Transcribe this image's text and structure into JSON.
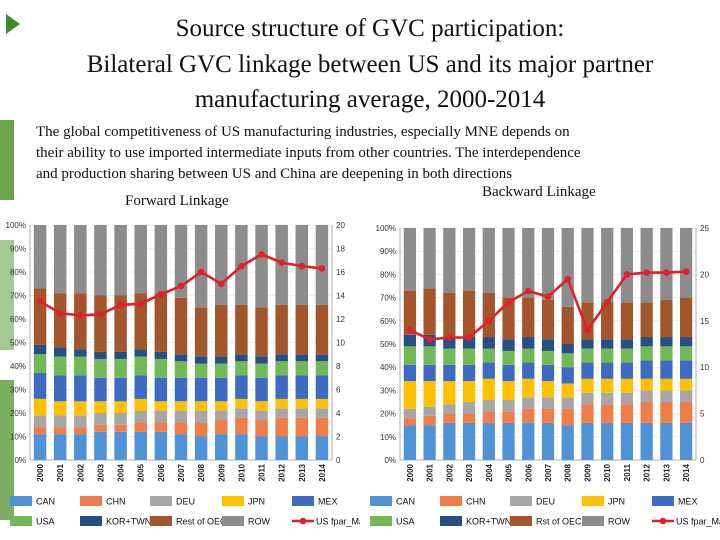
{
  "slide": {
    "title_lines": [
      "Source structure of GVC participation:",
      "Bilateral GVC linkage between US and its major partner",
      "manufacturing average, 2000-2014"
    ],
    "body_lines": [
      "The global competitiveness of US manufacturing industries, especially MNE depends on",
      "their ability to use imported intermediate inputs from other countries. The interdependence",
      "and production sharing between US and China are deepening in both directions"
    ],
    "forward_label": "Forward Linkage",
    "backward_label": "Backward Linkage"
  },
  "chart_data": [
    {
      "type": "bar",
      "title": "Forward Linkage",
      "stacked": true,
      "categories": [
        "2000",
        "2001",
        "2002",
        "2003",
        "2004",
        "2005",
        "2006",
        "2007",
        "2008",
        "2009",
        "2010",
        "2011",
        "2012",
        "2013",
        "2014"
      ],
      "ylim": [
        0,
        100
      ],
      "yticks": [
        "0%",
        "10%",
        "20%",
        "30%",
        "40%",
        "50%",
        "60%",
        "70%",
        "80%",
        "90%",
        "100%"
      ],
      "y2lim": [
        0,
        20
      ],
      "y2ticks": [
        "0",
        "2",
        "4",
        "6",
        "8",
        "10",
        "12",
        "14",
        "16",
        "18",
        "20"
      ],
      "series": [
        {
          "name": "CAN",
          "color": "#4f93d6",
          "values": [
            11,
            11,
            11,
            12,
            12,
            12,
            12,
            11,
            10,
            11,
            11,
            10,
            10,
            10,
            10
          ]
        },
        {
          "name": "CHN",
          "color": "#ee7d4a",
          "values": [
            3,
            3,
            3,
            3,
            3,
            4,
            4,
            5,
            6,
            6,
            7,
            7,
            8,
            8,
            8
          ]
        },
        {
          "name": "DEU",
          "color": "#a6a6a6",
          "values": [
            5,
            5,
            5,
            5,
            5,
            5,
            5,
            5,
            5,
            4,
            4,
            4,
            4,
            4,
            4
          ]
        },
        {
          "name": "JPN",
          "color": "#ffc000",
          "values": [
            7,
            6,
            6,
            5,
            5,
            5,
            4,
            4,
            4,
            4,
            4,
            4,
            4,
            4,
            4
          ]
        },
        {
          "name": "MEX",
          "color": "#3d6bc4",
          "values": [
            11,
            11,
            11,
            10,
            10,
            10,
            10,
            10,
            10,
            10,
            10,
            10,
            10,
            10,
            10
          ]
        },
        {
          "name": "USA",
          "color": "#72b857",
          "values": [
            8,
            8,
            8,
            8,
            8,
            8,
            8,
            7,
            6,
            6,
            6,
            6,
            6,
            6,
            6
          ]
        },
        {
          "name": "KOR+TWN",
          "color": "#264f84",
          "values": [
            4,
            4,
            3,
            3,
            3,
            3,
            3,
            3,
            3,
            3,
            3,
            3,
            3,
            3,
            3
          ]
        },
        {
          "name": "Rest of OECD",
          "color": "#a3562b",
          "values": [
            24,
            23,
            24,
            24,
            24,
            24,
            25,
            24,
            21,
            22,
            21,
            21,
            21,
            21,
            21
          ]
        },
        {
          "name": "ROW",
          "color": "#8c8c8c",
          "values": [
            27,
            29,
            29,
            30,
            30,
            29,
            29,
            31,
            35,
            34,
            34,
            35,
            34,
            34,
            34
          ]
        }
      ],
      "line": {
        "name": "US fpar_Man",
        "color": "#e0202a",
        "values": [
          13.5,
          12.5,
          12.3,
          12.4,
          13.2,
          13.3,
          14.1,
          14.8,
          16,
          15,
          16.5,
          17.5,
          16.8,
          16.5,
          16.3
        ]
      },
      "legend": [
        {
          "label": "CAN",
          "kind": "box",
          "color": "#4f93d6"
        },
        {
          "label": "CHN",
          "kind": "box",
          "color": "#ee7d4a"
        },
        {
          "label": "DEU",
          "kind": "box",
          "color": "#a6a6a6"
        },
        {
          "label": "JPN",
          "kind": "box",
          "color": "#ffc000"
        },
        {
          "label": "MEX",
          "kind": "box",
          "color": "#3d6bc4"
        },
        {
          "label": "USA",
          "kind": "box",
          "color": "#72b857"
        },
        {
          "label": "KOR+TWN",
          "kind": "box",
          "color": "#264f84"
        },
        {
          "label": "Rest of OECD",
          "kind": "box",
          "color": "#a3562b"
        },
        {
          "label": "ROW",
          "kind": "box",
          "color": "#8c8c8c"
        },
        {
          "label": "US fpar_Man",
          "kind": "line",
          "color": "#e0202a"
        }
      ]
    },
    {
      "type": "bar",
      "title": "Backward Linkage",
      "stacked": true,
      "categories": [
        "2000",
        "2001",
        "2002",
        "2003",
        "2004",
        "2005",
        "2006",
        "2007",
        "2008",
        "2009",
        "2010",
        "2011",
        "2012",
        "2013",
        "2014"
      ],
      "ylim": [
        0,
        100
      ],
      "yticks": [
        "0%",
        "10%",
        "20%",
        "30%",
        "40%",
        "50%",
        "60%",
        "70%",
        "80%",
        "90%",
        "100%"
      ],
      "y2lim": [
        0,
        25
      ],
      "y2ticks": [
        "0",
        "5",
        "10",
        "15",
        "20",
        "25"
      ],
      "series": [
        {
          "name": "CAN",
          "color": "#4f93d6",
          "values": [
            15,
            15,
            16,
            16,
            16,
            16,
            16,
            16,
            15,
            16,
            16,
            16,
            16,
            16,
            16
          ]
        },
        {
          "name": "CHN",
          "color": "#ee7d4a",
          "values": [
            3,
            4,
            4,
            4,
            5,
            5,
            6,
            6,
            7,
            8,
            8,
            8,
            9,
            9,
            9
          ]
        },
        {
          "name": "DEU",
          "color": "#a6a6a6",
          "values": [
            4,
            4,
            4,
            5,
            5,
            5,
            5,
            5,
            5,
            5,
            5,
            5,
            5,
            5,
            5
          ]
        },
        {
          "name": "JPN",
          "color": "#ffc000",
          "values": [
            12,
            11,
            10,
            9,
            9,
            8,
            8,
            7,
            6,
            6,
            6,
            6,
            5,
            5,
            5
          ]
        },
        {
          "name": "MEX",
          "color": "#3d6bc4",
          "values": [
            7,
            7,
            7,
            7,
            7,
            7,
            7,
            7,
            7,
            7,
            7,
            7,
            8,
            8,
            8
          ]
        },
        {
          "name": "USA",
          "color": "#72b857",
          "values": [
            8,
            8,
            7,
            7,
            6,
            6,
            6,
            6,
            6,
            6,
            6,
            6,
            6,
            6,
            6
          ]
        },
        {
          "name": "KOR+TWN",
          "color": "#264f84",
          "values": [
            5,
            5,
            5,
            5,
            5,
            5,
            5,
            5,
            4,
            4,
            4,
            4,
            4,
            4,
            4
          ]
        },
        {
          "name": "Rest of OECD",
          "color": "#a3562b",
          "values": [
            19,
            20,
            19,
            20,
            19,
            18,
            17,
            17,
            16,
            16,
            16,
            16,
            15,
            16,
            17
          ]
        },
        {
          "name": "ROW",
          "color": "#8c8c8c",
          "values": [
            27,
            26,
            28,
            27,
            28,
            30,
            30,
            31,
            34,
            32,
            32,
            32,
            32,
            31,
            30
          ]
        }
      ],
      "line": {
        "name": "US fpar_Man",
        "color": "#e0202a",
        "values": [
          14,
          13,
          13.2,
          13.2,
          15,
          17,
          18.2,
          17.6,
          19.5,
          14,
          17,
          20,
          20.2,
          20.2,
          20.3
        ]
      },
      "legend": [
        {
          "label": "CAN",
          "kind": "box",
          "color": "#4f93d6"
        },
        {
          "label": "CHN",
          "kind": "box",
          "color": "#ee7d4a"
        },
        {
          "label": "DEU",
          "kind": "box",
          "color": "#a6a6a6"
        },
        {
          "label": "JPN",
          "kind": "box",
          "color": "#ffc000"
        },
        {
          "label": "MEX",
          "kind": "box",
          "color": "#3d6bc4"
        },
        {
          "label": "USA",
          "kind": "box",
          "color": "#72b857"
        },
        {
          "label": "KOR+TWN",
          "kind": "box",
          "color": "#264f84"
        },
        {
          "label": "Rst of OECD",
          "kind": "box",
          "color": "#a3562b"
        },
        {
          "label": "ROW",
          "kind": "box",
          "color": "#8c8c8c"
        },
        {
          "label": "US fpar_Man",
          "kind": "line",
          "color": "#e0202a"
        }
      ]
    }
  ]
}
